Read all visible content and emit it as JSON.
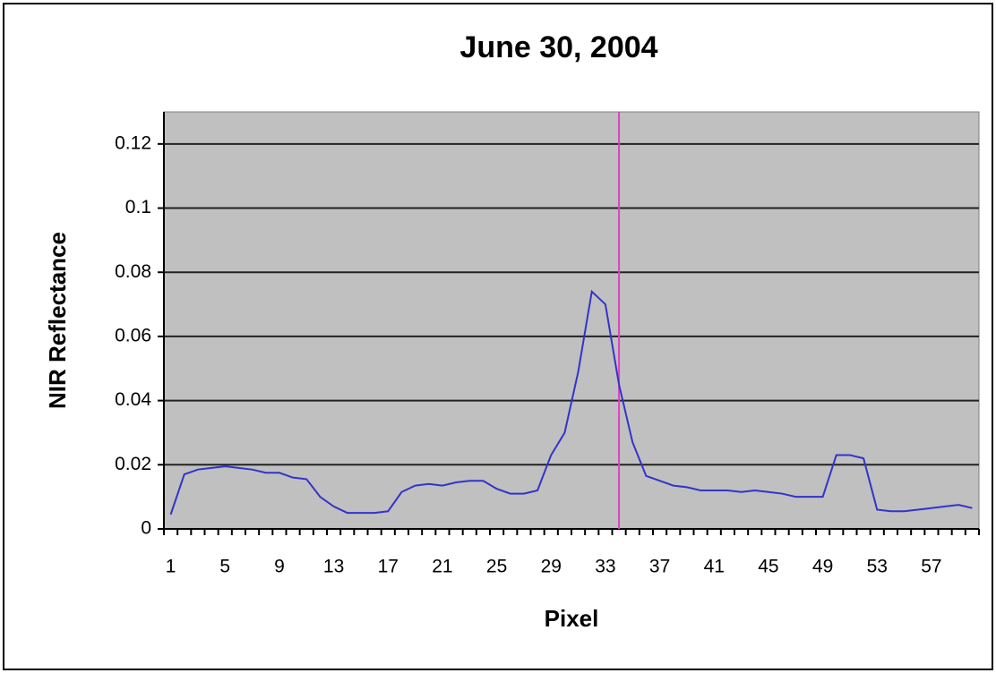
{
  "chart_data": {
    "type": "line",
    "title": "June 30, 2004",
    "x_label": "Pixel",
    "y_label": "NIR Reflectance",
    "categories": [
      "1",
      null,
      null,
      null,
      "5",
      null,
      null,
      null,
      "9",
      null,
      null,
      null,
      "13",
      null,
      null,
      null,
      "17",
      null,
      null,
      null,
      "21",
      null,
      null,
      null,
      "25",
      null,
      null,
      null,
      "29",
      null,
      null,
      null,
      "33",
      null,
      null,
      null,
      "37",
      null,
      null,
      null,
      "41",
      null,
      null,
      null,
      "45",
      null,
      null,
      null,
      "49",
      null,
      null,
      null,
      "53",
      null,
      null,
      null,
      "57",
      null,
      null,
      null
    ],
    "series": [
      {
        "name": "NIR Reflectance",
        "color": "#3333cc",
        "values": [
          0.0045,
          0.017,
          0.0185,
          0.019,
          0.0195,
          0.019,
          0.0185,
          0.0175,
          0.0175,
          0.016,
          0.0155,
          0.01,
          0.007,
          0.005,
          0.005,
          0.005,
          0.0055,
          0.0115,
          0.0135,
          0.014,
          0.0135,
          0.0145,
          0.015,
          0.015,
          0.0125,
          0.011,
          0.011,
          0.012,
          0.023,
          0.03,
          0.049,
          0.074,
          0.07,
          0.045,
          0.027,
          0.0165,
          0.015,
          0.0135,
          0.013,
          0.012,
          0.012,
          0.012,
          0.0115,
          0.012,
          0.0115,
          0.011,
          0.01,
          0.01,
          0.01,
          0.023,
          0.023,
          0.022,
          0.006,
          0.0055,
          0.0055,
          0.006,
          0.0065,
          0.007,
          0.0075,
          0.0065
        ]
      }
    ],
    "reference_line": {
      "category": 34,
      "color": "#e040c0"
    },
    "ylim": [
      0,
      0.13
    ],
    "yticks": [
      0,
      0.02,
      0.04,
      0.06,
      0.08,
      0.1,
      0.12
    ],
    "grid": true
  }
}
